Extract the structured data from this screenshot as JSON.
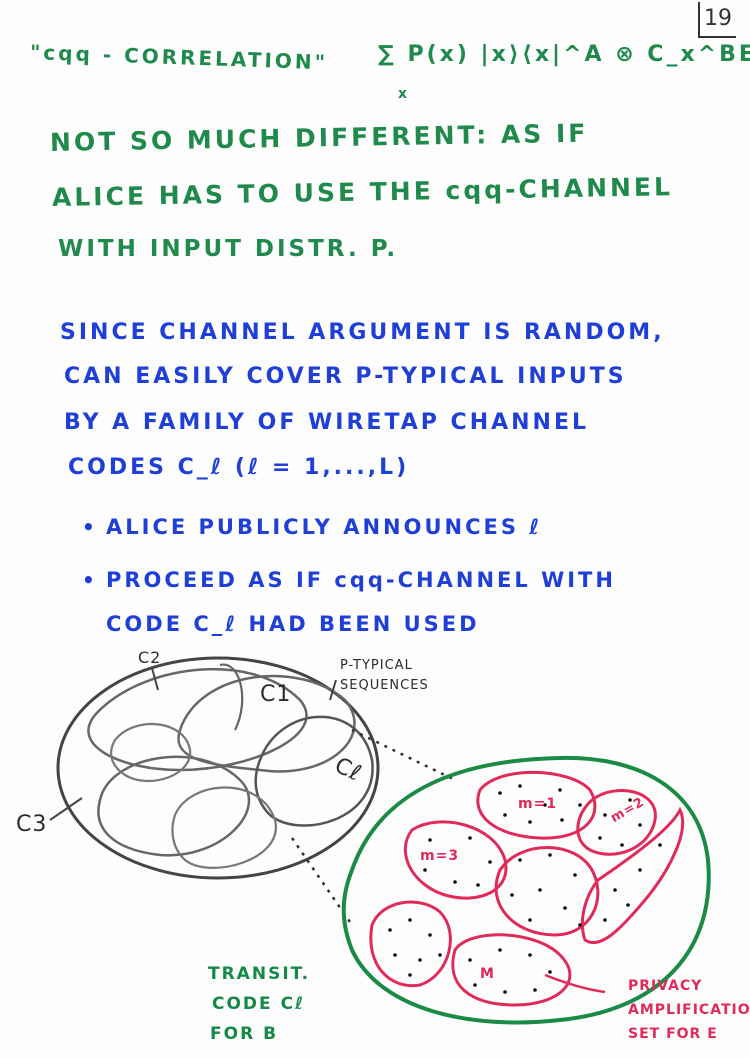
{
  "page_number": "19",
  "header": {
    "title": "\"cqq - CORRELATION\"",
    "formula": "∑ P(x) |x⟩⟨x|^A ⊗ C_x^BE",
    "sum_index": "x"
  },
  "green_lines": [
    "NOT SO MUCH DIFFERENT: AS IF",
    "ALICE HAS TO USE THE cqq-CHANNEL",
    "WITH INPUT DISTR. P."
  ],
  "blue_lines": [
    "SINCE CHANNEL ARGUMENT IS RANDOM,",
    "CAN EASILY COVER P-TYPICAL INPUTS",
    "BY A FAMILY OF WIRETAP CHANNEL",
    "CODES C_ℓ (ℓ = 1,...,L)"
  ],
  "bullets": [
    "ALICE PUBLICLY ANNOUNCES ℓ",
    "PROCEED AS IF cqq-CHANNEL WITH",
    "CODE C_ℓ HAD BEEN USED"
  ],
  "diagram": {
    "ptypical_label": "P-TYPICAL SEQUENCES",
    "code_labels": [
      "C2",
      "C1",
      "Cℓ",
      "C3"
    ],
    "message_labels": [
      "m=1",
      "m=2",
      "m=3",
      "M"
    ],
    "transit_label": [
      "TRANSIT.",
      "CODE Cℓ",
      "FOR B"
    ],
    "privacy_label": [
      "PRIVACY",
      "AMPLIFICATION",
      "SET FOR E"
    ],
    "colors": {
      "green": "#1f8a4c",
      "blue": "#1f3fd6",
      "red": "#e02a5a",
      "gray": "#555555"
    }
  }
}
